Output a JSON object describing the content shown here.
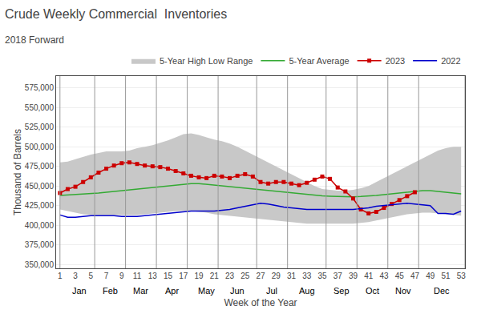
{
  "chart_data": {
    "type": "line",
    "title": "Crude Weekly Commercial  Inventories",
    "subtitle": "2018 Forward",
    "xlabel": "Week of the Year",
    "ylabel": "Thousand of Barrels",
    "x": [
      1,
      2,
      3,
      4,
      5,
      6,
      7,
      8,
      9,
      10,
      11,
      12,
      13,
      14,
      15,
      16,
      17,
      18,
      19,
      20,
      21,
      22,
      23,
      24,
      25,
      26,
      27,
      28,
      29,
      30,
      31,
      32,
      33,
      34,
      35,
      36,
      37,
      38,
      39,
      40,
      41,
      42,
      43,
      44,
      45,
      46,
      47,
      48,
      49,
      50,
      51,
      52,
      53
    ],
    "xlim": [
      0.5,
      53.5
    ],
    "xticks": [
      1,
      3,
      5,
      7,
      9,
      11,
      13,
      15,
      17,
      19,
      21,
      23,
      25,
      27,
      29,
      31,
      33,
      35,
      37,
      39,
      41,
      43,
      45,
      47,
      49,
      51,
      53
    ],
    "ylim": [
      345000,
      590000
    ],
    "yticks": [
      {
        "value": 350000,
        "label": "350,000"
      },
      {
        "value": 375000,
        "label": "375,000"
      },
      {
        "value": 400000,
        "label": "400,000"
      },
      {
        "value": 425000,
        "label": "425,000"
      },
      {
        "value": 450000,
        "label": "450,000"
      },
      {
        "value": 475000,
        "label": "475,000"
      },
      {
        "value": 500000,
        "label": "500,000"
      },
      {
        "value": 525000,
        "label": "525,000"
      },
      {
        "value": 550000,
        "label": "550,000"
      },
      {
        "value": 575000,
        "label": "575,000"
      }
    ],
    "grid": "y",
    "legend": "top",
    "vlines": [
      1,
      5.5,
      9.5,
      13.5,
      17.5,
      21.5,
      26.5,
      30.5,
      35.5,
      39.5,
      43.5,
      47.5,
      53.5
    ],
    "annotations": [
      {
        "x": 3.5,
        "text": "Jan"
      },
      {
        "x": 7.5,
        "text": "Feb"
      },
      {
        "x": 11.5,
        "text": "Mar"
      },
      {
        "x": 15.5,
        "text": "Apr"
      },
      {
        "x": 20.0,
        "text": "May"
      },
      {
        "x": 24.0,
        "text": "Jun"
      },
      {
        "x": 28.5,
        "text": "Jul"
      },
      {
        "x": 33.0,
        "text": "Aug"
      },
      {
        "x": 37.5,
        "text": "Sep"
      },
      {
        "x": 41.5,
        "text": "Oct"
      },
      {
        "x": 45.5,
        "text": "Nov"
      },
      {
        "x": 50.5,
        "text": "Dec"
      }
    ],
    "series": [
      {
        "name": "5-Year High Low Range",
        "type": "range",
        "color": "#c8c8c8",
        "low": [
          420000,
          418000,
          416000,
          414000,
          413000,
          413000,
          413000,
          413000,
          413000,
          413000,
          413000,
          414000,
          415000,
          416000,
          417000,
          418000,
          418000,
          418000,
          417000,
          416000,
          414000,
          413000,
          412000,
          411000,
          410000,
          409000,
          408000,
          407000,
          406000,
          405000,
          404000,
          403000,
          402000,
          402000,
          402000,
          402000,
          402000,
          402000,
          402000,
          403000,
          404000,
          406000,
          408000,
          410000,
          412000,
          414000,
          415000,
          416000,
          416000,
          415000,
          414000,
          413000,
          412000
        ],
        "high": [
          480000,
          481000,
          484000,
          487000,
          490000,
          492000,
          494000,
          494000,
          494000,
          495000,
          498000,
          500000,
          502000,
          505000,
          508000,
          512000,
          516000,
          517000,
          515000,
          512000,
          509000,
          507000,
          504000,
          500000,
          495000,
          490000,
          485000,
          480000,
          475000,
          470000,
          465000,
          460000,
          455000,
          450000,
          446000,
          445000,
          444000,
          444000,
          445000,
          447000,
          450000,
          455000,
          460000,
          465000,
          470000,
          475000,
          480000,
          485000,
          490000,
          495000,
          498000,
          500000,
          500000
        ]
      },
      {
        "name": "5-Year Average",
        "color": "#33aa33",
        "values": [
          438000,
          438500,
          439000,
          439500,
          440000,
          441000,
          442000,
          443000,
          444000,
          445000,
          446000,
          447000,
          448000,
          449000,
          450000,
          451000,
          452000,
          453000,
          453000,
          452000,
          451000,
          450000,
          449000,
          448000,
          447000,
          446000,
          445000,
          444000,
          443000,
          442000,
          441000,
          440000,
          439000,
          438000,
          437500,
          437000,
          436500,
          436000,
          436000,
          436500,
          437000,
          438000,
          439000,
          440000,
          441000,
          442000,
          443000,
          444000,
          444000,
          443000,
          442000,
          441000,
          440000
        ]
      },
      {
        "name": "2023",
        "color": "#cc0000",
        "marker": "square",
        "values": [
          441000,
          446000,
          449000,
          455000,
          461000,
          467000,
          472000,
          476000,
          479000,
          480000,
          478000,
          476000,
          475000,
          474000,
          472000,
          469000,
          466000,
          463000,
          461000,
          460000,
          463000,
          462000,
          460000,
          463000,
          465000,
          462000,
          455000,
          453000,
          455000,
          455000,
          453000,
          451000,
          454000,
          458000,
          462000,
          459000,
          448000,
          443000,
          434000,
          420000,
          415000,
          417000,
          422000,
          427000,
          432000,
          437000,
          442000,
          null,
          null,
          null,
          null,
          null,
          null
        ]
      },
      {
        "name": "2022",
        "color": "#0000cc",
        "values": [
          413000,
          410000,
          410000,
          411000,
          412000,
          412000,
          412000,
          412000,
          411000,
          411000,
          411000,
          412000,
          413000,
          414000,
          415000,
          416000,
          417000,
          418000,
          418000,
          418000,
          418000,
          419000,
          420000,
          422000,
          424000,
          426000,
          428000,
          427000,
          425000,
          423000,
          422000,
          421000,
          420000,
          420000,
          420000,
          420000,
          420000,
          420000,
          420000,
          421000,
          422000,
          424000,
          425000,
          426000,
          427000,
          428000,
          427000,
          426000,
          425000,
          415000,
          415000,
          414000,
          418000
        ]
      }
    ]
  }
}
